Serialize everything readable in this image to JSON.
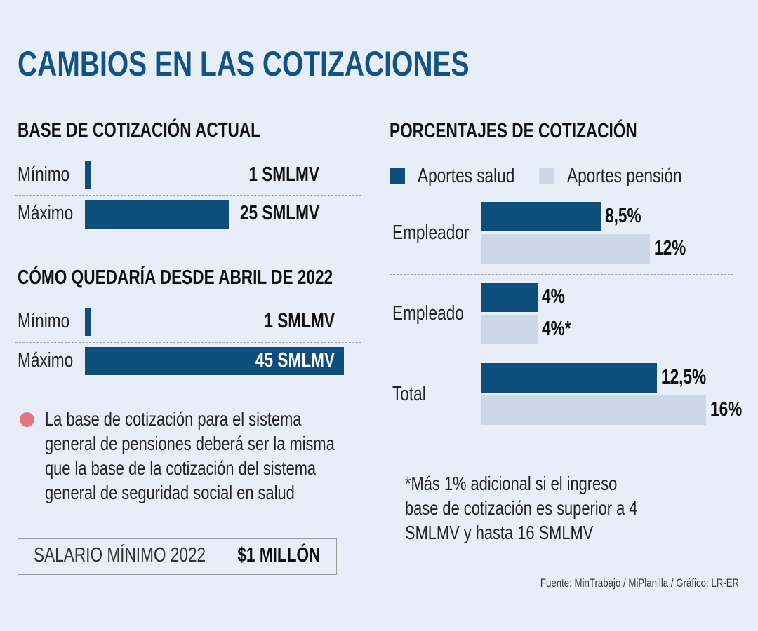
{
  "title": "CAMBIOS EN LAS COTIZACIONES",
  "colors": {
    "dark_blue": "#0f4d7c",
    "light_blue": "#ccd7e8",
    "title": "#125386",
    "bullet": "#e07585",
    "background": "#e8eef8"
  },
  "chart_data": [
    {
      "type": "bar",
      "title": "BASE DE COTIZACIÓN ACTUAL",
      "categories": [
        "Mínimo",
        "Máximo"
      ],
      "values": [
        1,
        25
      ],
      "value_labels": [
        "1 SMLMV",
        "25 SMLMV"
      ],
      "unit": "SMLMV"
    },
    {
      "type": "bar",
      "title": "CÓMO QUEDARÍA DESDE ABRIL DE 2022",
      "categories": [
        "Mínimo",
        "Máximo"
      ],
      "values": [
        1,
        45
      ],
      "value_labels": [
        "1 SMLMV",
        "45 SMLMV"
      ],
      "unit": "SMLMV"
    },
    {
      "type": "bar",
      "title": "PORCENTAJES DE COTIZACIÓN",
      "categories": [
        "Empleador",
        "Empleado",
        "Total"
      ],
      "legend": "top-left",
      "series": [
        {
          "name": "Aportes salud",
          "values": [
            8.5,
            4,
            12.5
          ],
          "labels": [
            "8,5%",
            "4%",
            "12,5%"
          ]
        },
        {
          "name": "Aportes pensión",
          "values": [
            12,
            4,
            16
          ],
          "labels": [
            "12%",
            "4%*",
            "16%"
          ]
        }
      ]
    }
  ],
  "note": [
    "La base de cotización para el sistema",
    "general de pensiones deberá ser la misma",
    "que la base de la cotización del sistema",
    "general de seguridad social en salud"
  ],
  "salary": {
    "label": "SALARIO MÍNIMO 2022",
    "value": "$1 MILLÓN"
  },
  "footnote": [
    "*Más 1% adicional si el ingreso",
    "base de cotización es superior a 4",
    "SMLMV y hasta 16 SMLMV"
  ],
  "source": "Fuente: MinTrabajo / MiPlanilla / Gráfico: LR-ER"
}
